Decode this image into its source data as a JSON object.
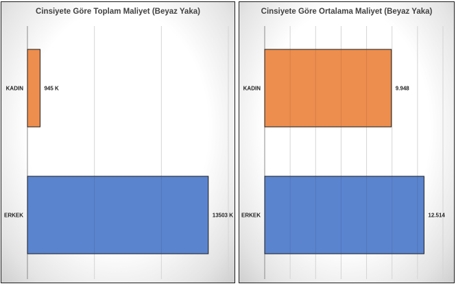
{
  "chart_data": [
    {
      "type": "bar",
      "orientation": "horizontal",
      "title": "Cinsiyete Göre Toplam Maliyet (Beyaz Yaka)",
      "categories": [
        "KADIN",
        "ERKEK"
      ],
      "values": [
        945,
        13503
      ],
      "data_labels": [
        "945 K",
        "13503 K"
      ],
      "colors": [
        "#ED8E4E",
        "#5B84CF"
      ],
      "xlim": [
        0,
        15000
      ],
      "grid": true,
      "legend": "none"
    },
    {
      "type": "bar",
      "orientation": "horizontal",
      "title": "Cinsiyete Göre Ortalama Maliyet (Beyaz Yaka)",
      "categories": [
        "KADIN",
        "ERKEK"
      ],
      "values": [
        9.948,
        12.514
      ],
      "data_labels": [
        "9.948",
        "12.514"
      ],
      "colors": [
        "#ED8E4E",
        "#5B84CF"
      ],
      "xlim": [
        0,
        14
      ],
      "grid": true,
      "legend": "none"
    }
  ]
}
